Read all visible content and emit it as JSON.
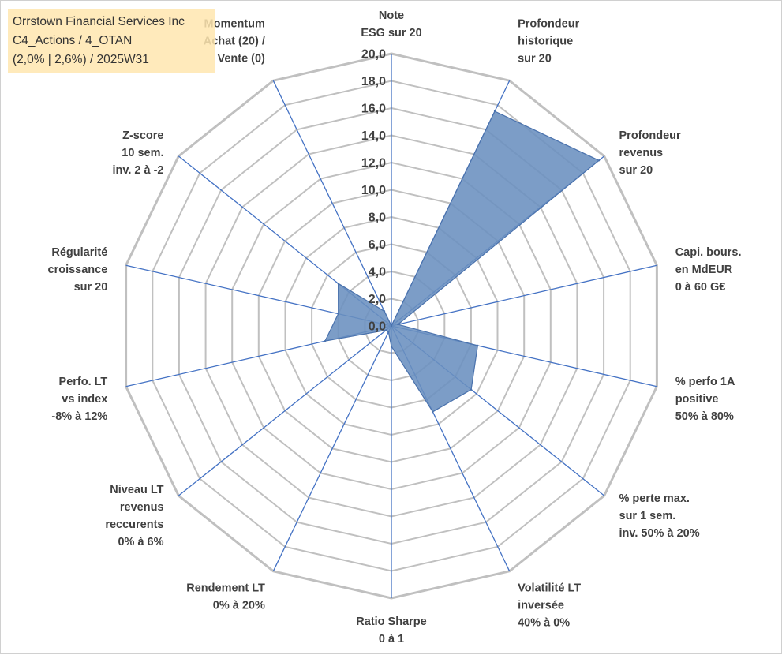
{
  "chart_data": {
    "type": "radar",
    "title_lines": [
      "Orrstown Financial Services Inc",
      "C4_Actions / 4_OTAN",
      "(2,0% | 2,6%) / 2025W31"
    ],
    "rlim": [
      0,
      20
    ],
    "ticks": [
      "0,0",
      "2,0",
      "4,0",
      "6,0",
      "8,0",
      "10,0",
      "12,0",
      "14,0",
      "16,0",
      "18,0",
      "20,0"
    ],
    "axes": [
      [
        "Note",
        "ESG sur 20"
      ],
      [
        "Profondeur",
        "historique",
        "sur 20"
      ],
      [
        "Profondeur",
        "revenus",
        "sur 20"
      ],
      [
        "Capi. bours.",
        "en MdEUR",
        "0 à 60 G€"
      ],
      [
        "% perfo 1A",
        "positive",
        "50% à 80%"
      ],
      [
        "% perte max.",
        "sur 1 sem.",
        "inv. 50% à 20%"
      ],
      [
        "Volatilité LT",
        "inversée",
        "40% à 0%"
      ],
      [
        "Ratio Sharpe",
        "0 à 1"
      ],
      [
        "Rendement LT",
        "0% à 20%"
      ],
      [
        "Niveau LT",
        "revenus",
        "reccurents",
        "0% à 6%"
      ],
      [
        "Perfo. LT",
        "vs index",
        "-8% à 12%"
      ],
      [
        "Régularité",
        "croissance",
        "sur 20"
      ],
      [
        "Z-score",
        "10 sem.",
        "inv. 2 à -2"
      ],
      [
        "Momentum",
        "Achat (20) /",
        "Vente (0)"
      ]
    ],
    "series": [
      {
        "values": [
          0.0,
          17.5,
          19.5,
          0.5,
          6.5,
          7.5,
          7.0,
          1.5,
          0.5,
          0.5,
          5.0,
          4.0,
          5.0,
          1.2
        ]
      }
    ],
    "colors": {
      "grid": "#c0c0c0",
      "spoke": "#4472c4",
      "fill": "#6a8fbf",
      "stroke": "#4a72ad"
    }
  }
}
